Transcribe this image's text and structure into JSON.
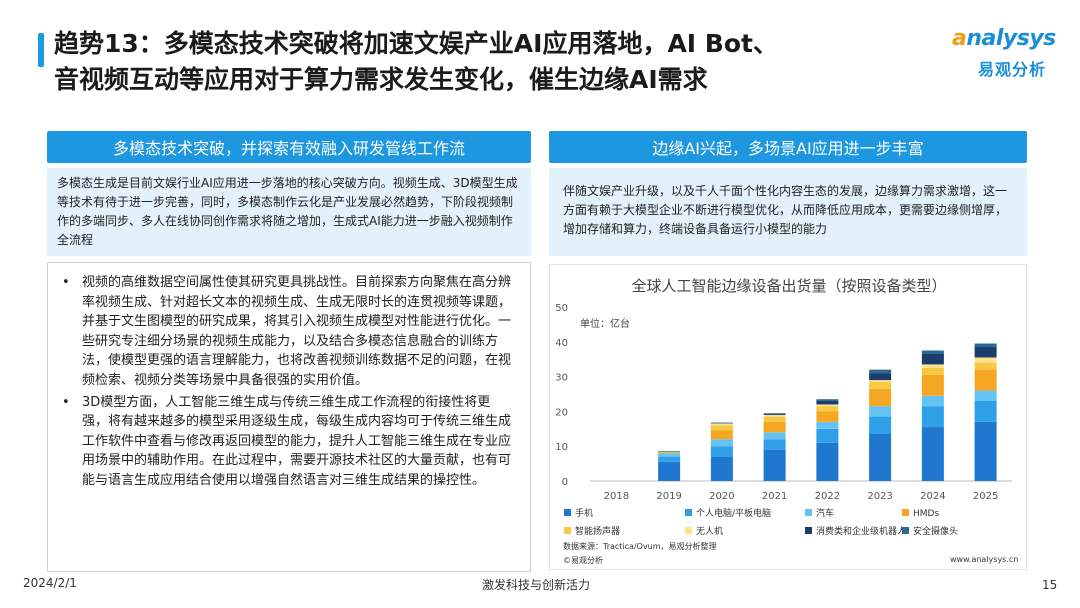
{
  "header": {
    "title_line1": "趋势13：多模态技术突破将加速文娱产业AI应用落地，AI Bot、",
    "title_line2": "音视频互动等应用对于算力需求发生变化，催生边缘AI需求"
  },
  "logo": {
    "en_a": "a",
    "en_rest": "nalysys",
    "cn": "易观分析"
  },
  "left": {
    "band": "多模态技术突破，并探索有效融入研发管线工作流",
    "summary": "多模态生成是目前文娱行业AI应用进一步落地的核心突破方向。视频生成、3D模型生成等技术有待于进一步完善，同时，多模态制作云化是产业发展必然趋势，下阶段视频制作的多端同步、多人在线协同创作需求将随之增加，生成式AI能力进一步融入视频制作全流程",
    "bullets": [
      "视频的高维数据空间属性使其研究更具挑战性。目前探索方向聚焦在高分辨率视频生成、针对超长文本的视频生成、生成无限时长的连贯视频等课题，并基于文生图模型的研究成果，将其引入视频生成模型对性能进行优化。一些研究专注细分场景的视频生成能力，以及结合多模态信息融合的训练方法，使模型更强的语言理解能力，也将改善视频训练数据不足的问题，在视频检索、视频分类等场景中具备很强的实用价值。",
      "3D模型方面，人工智能三维生成与传统三维生成工作流程的衔接性将更强，将有越来越多的模型采用逐级生成，每级生成内容均可于传统三维生成工作软件中查看与修改再返回模型的能力，提升人工智能三维生成在专业应用场景中的辅助作用。在此过程中，需要开源技术社区的大量贡献，也有可能与语言生成应用结合使用以增强自然语言对三维生成结果的操控性。"
    ],
    "bullet_symbol": "•"
  },
  "right": {
    "band": "边缘AI兴起，多场景AI应用进一步丰富",
    "summary": "伴随文娱产业升级，以及千人千面个性化内容生态的发展，边缘算力需求激增，这一方面有赖于大模型企业不断进行模型优化，从而降低应用成本，更需要边缘侧增厚，增加存储和算力，终端设备具备运行小模型的能力",
    "source": "数据来源：Tractica/Ovum，易观分析整理",
    "copyright": "©易观分析",
    "website": "www.analysys.cn"
  },
  "chart_data": {
    "type": "bar",
    "stacked": true,
    "title": "全球人工智能边缘设备出货量（按照设备类型）",
    "unit_label": "单位：亿台",
    "categories": [
      "2018",
      "2019",
      "2020",
      "2021",
      "2022",
      "2023",
      "2024",
      "2025"
    ],
    "ylim": [
      0,
      50
    ],
    "yticks": [
      0,
      10,
      20,
      30,
      40,
      50
    ],
    "grid": false,
    "legend_position": "bottom",
    "series": [
      {
        "name": "手机",
        "color": "#1f77d0",
        "values": [
          0,
          5.5,
          7,
          9,
          11,
          13.5,
          15.5,
          17
        ]
      },
      {
        "name": "个人电脑/平板电脑",
        "color": "#2fa0e8",
        "values": [
          0,
          1.5,
          3,
          3,
          4,
          5,
          6,
          6
        ]
      },
      {
        "name": "汽车",
        "color": "#64c3f2",
        "values": [
          0,
          1,
          2,
          2,
          2,
          3,
          3,
          3
        ]
      },
      {
        "name": "HMDs",
        "color": "#f5a623",
        "values": [
          0,
          0.2,
          2.5,
          3,
          3,
          5,
          6,
          6
        ]
      },
      {
        "name": "智能扬声器",
        "color": "#f7c843",
        "values": [
          0,
          0.2,
          1.5,
          1.5,
          1.5,
          2,
          2,
          2
        ]
      },
      {
        "name": "无人机",
        "color": "#fde18b",
        "values": [
          0,
          0,
          0.5,
          0.5,
          0.5,
          0.5,
          1,
          1.5
        ]
      },
      {
        "name": "消费类和企业级机器人",
        "color": "#1a3d6d",
        "values": [
          0,
          0.1,
          0.1,
          0.3,
          1,
          2,
          3,
          3
        ]
      },
      {
        "name": "安全摄像头",
        "color": "#2c6a93",
        "values": [
          0,
          0.1,
          0.2,
          0.2,
          0.5,
          1,
          1,
          1
        ]
      }
    ]
  },
  "footer": {
    "date": "2024/2/1",
    "center": "激发科技与创新活力",
    "page": "15"
  }
}
